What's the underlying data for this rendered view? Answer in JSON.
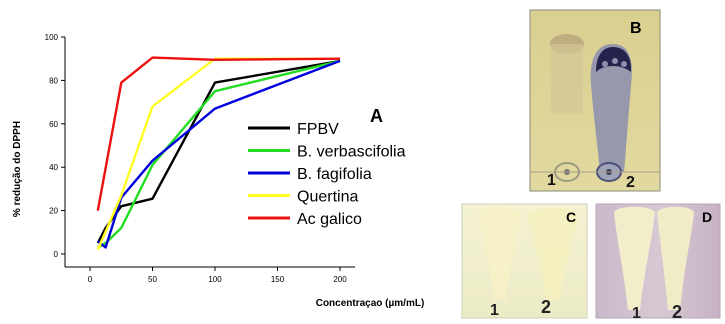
{
  "chart_data": {
    "type": "line",
    "panel_label": "A",
    "xlabel": "Concentraçao (µm/mL)",
    "ylabel": "% redução do DPPH",
    "xlim": [
      -20,
      212
    ],
    "ylim": [
      -6,
      100
    ],
    "xticks": [
      0,
      50,
      100,
      150,
      200
    ],
    "yticks": [
      0,
      20,
      40,
      60,
      80,
      100
    ],
    "legend_position": "center-right",
    "series": [
      {
        "name": "FPBV",
        "color": "#000000",
        "x": [
          6.25,
          12.5,
          25,
          50,
          100,
          200
        ],
        "y": [
          5,
          12,
          22,
          25.5,
          79,
          89
        ]
      },
      {
        "name": "B. verbascifolia",
        "color": "#22dd22",
        "x": [
          6.25,
          12.5,
          25,
          50,
          100,
          200
        ],
        "y": [
          3,
          5,
          12,
          41,
          75,
          89
        ]
      },
      {
        "name": "B. fagifolia",
        "color": "#0000dd",
        "x": [
          6.25,
          12.5,
          25,
          50,
          100,
          200
        ],
        "y": [
          6,
          3,
          26,
          43,
          67,
          89
        ]
      },
      {
        "name": "Quertina",
        "color": "#ffff22",
        "x": [
          6.25,
          25,
          50,
          100,
          200
        ],
        "y": [
          2,
          27,
          68,
          90,
          90
        ]
      },
      {
        "name": "Ac galico",
        "color": "#ee1111",
        "x": [
          6.25,
          25,
          50,
          100,
          200
        ],
        "y": [
          20,
          79,
          90.5,
          89.5,
          90
        ]
      }
    ]
  },
  "plates": [
    {
      "label": "B",
      "lanes": [
        "1",
        "2"
      ]
    },
    {
      "label": "C",
      "lanes": [
        "1",
        "2"
      ]
    },
    {
      "label": "D",
      "lanes": [
        "1",
        "2"
      ]
    }
  ]
}
